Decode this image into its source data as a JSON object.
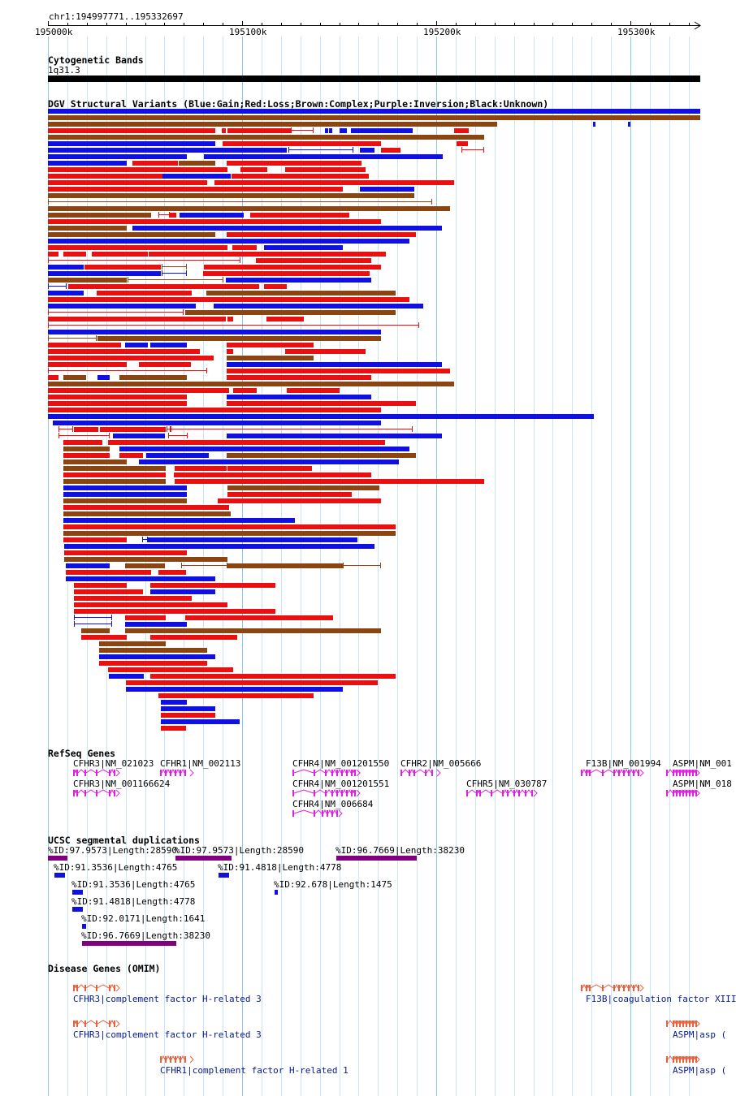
{
  "ruler": {
    "locus": "chr1:194997771..195332697",
    "ticks": [
      "195000k",
      "195100k",
      "195200k",
      "195300k"
    ]
  },
  "cytoband": {
    "title": "Cytogenetic Bands",
    "label": "1q31.3"
  },
  "dgv": {
    "title": "DGV Structural Variants (Blue:Gain;Red:Loss;Brown:Complex;Purple:Inversion;Black:Unknown)",
    "colors": {
      "gain": "#1010e0",
      "loss": "#e81010",
      "complex": "#8b4513",
      "inversion": "#800080",
      "unknown": "#000000"
    }
  },
  "refseq": {
    "title": "RefSeq Genes",
    "genes": [
      "CFHR3|NM_021023",
      "CFHR1|NM_002113",
      "CFHR4|NM_001201550",
      "CFHR2|NM_005666",
      "F13B|NM_001994",
      "ASPM|NM_001",
      "CFHR3|NM_001166624",
      "CFHR4|NM_001201551",
      "CFHR5|NM_030787",
      "ASPM|NM_018",
      "CFHR4|NM_006684"
    ],
    "color": "#e020e0"
  },
  "segdup": {
    "title": "UCSC segmental duplications",
    "items": [
      "%ID:97.9573|Length:28590",
      "%ID:97.9573|Length:28590",
      "%ID:96.7669|Length:38230",
      "%ID:91.3536|Length:4765",
      "%ID:91.4818|Length:4778",
      "%ID:91.3536|Length:4765",
      "%ID:92.678|Length:1475",
      "%ID:91.4818|Length:4778",
      "%ID:92.0171|Length:1641",
      "%ID:96.7669|Length:38230"
    ]
  },
  "omim": {
    "title": "Disease Genes (OMIM)",
    "items": [
      "CFHR3|complement factor H-related 3",
      "F13B|coagulation factor XIII",
      "CFHR3|complement factor H-related 3",
      "ASPM|asp (",
      "CFHR1|complement factor H-related 1",
      "ASPM|asp ("
    ],
    "color": "#e8603c"
  }
}
